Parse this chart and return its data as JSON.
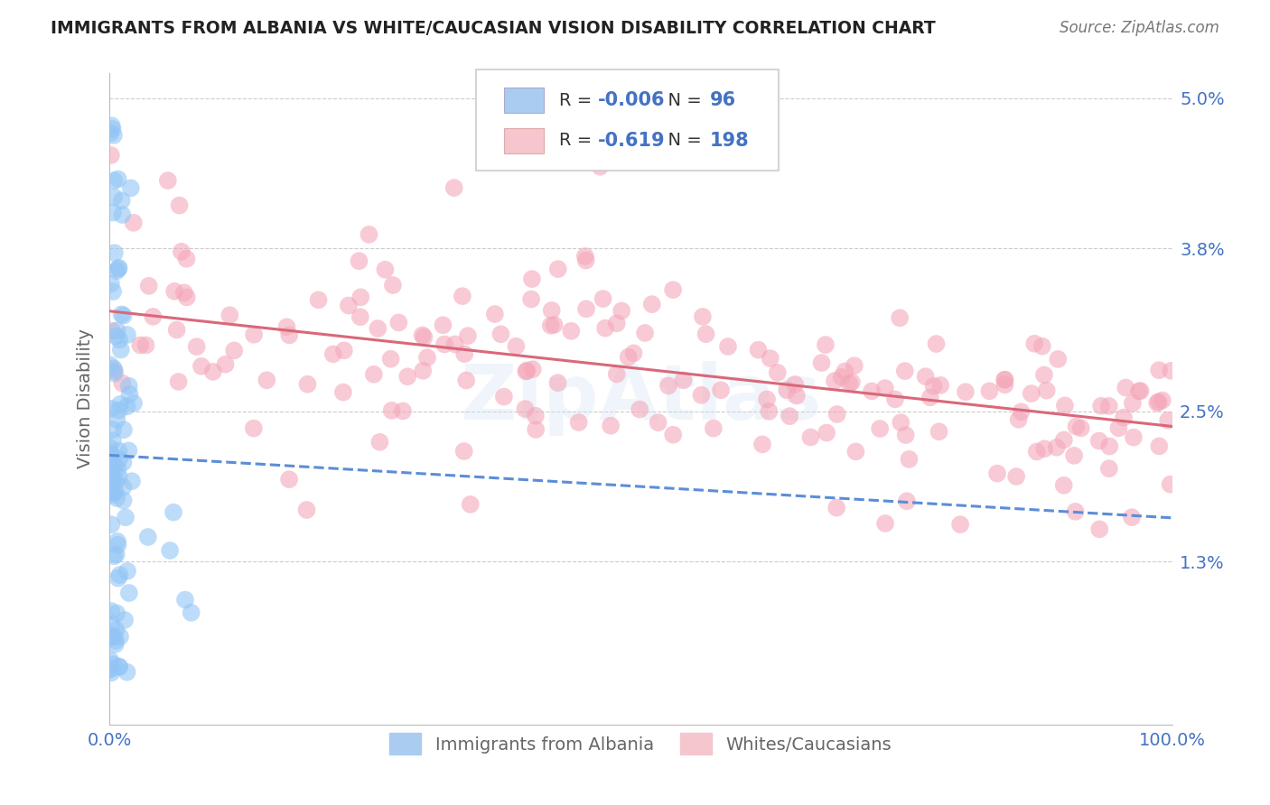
{
  "title": "IMMIGRANTS FROM ALBANIA VS WHITE/CAUCASIAN VISION DISABILITY CORRELATION CHART",
  "source": "Source: ZipAtlas.com",
  "ylabel": "Vision Disability",
  "legend_blue_label": "Immigrants from Albania",
  "legend_pink_label": "Whites/Caucasians",
  "xlim": [
    0.0,
    1.0
  ],
  "ylim_min": 0.0,
  "ylim_max": 0.052,
  "ytick_vals": [
    0.013,
    0.025,
    0.038,
    0.05
  ],
  "ytick_labels": [
    "1.3%",
    "2.5%",
    "3.8%",
    "5.0%"
  ],
  "xtick_vals": [
    0.0,
    1.0
  ],
  "xtick_labels": [
    "0.0%",
    "100.0%"
  ],
  "blue_color": "#92c5f5",
  "pink_color": "#f4a7b9",
  "blue_fill_color": "#aaccf0",
  "pink_fill_color": "#f5c6ce",
  "blue_line_color": "#5b8dd9",
  "pink_line_color": "#d9687a",
  "title_color": "#222222",
  "axis_label_color": "#666666",
  "tick_color": "#4472c4",
  "grid_color": "#cccccc",
  "background_color": "#ffffff",
  "watermark_text": "ZipAtlas",
  "blue_N": 96,
  "pink_N": 198,
  "blue_R_str": "-0.006",
  "pink_R_str": "-0.619",
  "blue_intercept": 0.0215,
  "blue_slope": -0.005,
  "pink_intercept": 0.033,
  "pink_slope": -0.0092
}
